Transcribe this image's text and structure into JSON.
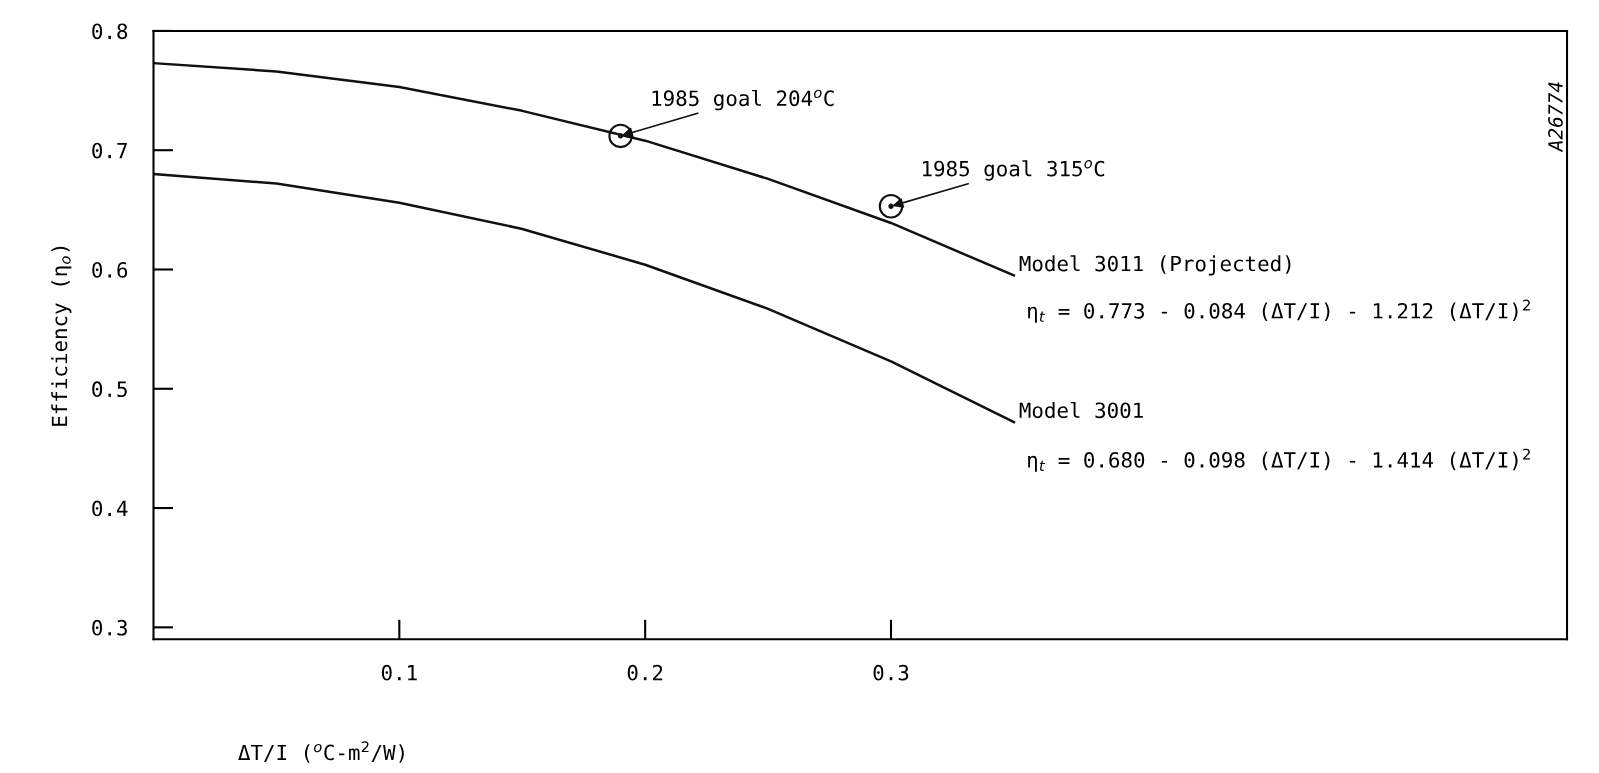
{
  "chart_data": {
    "type": "line",
    "xlabel": "ΔT/I ($^{o}$C-m$^{2}$/W)",
    "ylabel": "Efficiency (η$_{o}$)",
    "xlim": [
      0,
      0.575
    ],
    "xticks": [
      0.1,
      0.2,
      0.3
    ],
    "ylim": [
      0.29,
      0.8
    ],
    "yticks": [
      0.3,
      0.4,
      0.5,
      0.6,
      0.7,
      0.8
    ],
    "grid": false,
    "legend": false,
    "marker": "none",
    "line_style": "solid",
    "series": [
      {
        "name": "Model 3011 (Projected)",
        "color": "#111111",
        "x": [
          0,
          0.05,
          0.1,
          0.15,
          0.2,
          0.25,
          0.3,
          0.35
        ],
        "values": [
          0.773,
          0.766,
          0.753,
          0.733,
          0.708,
          0.676,
          0.639,
          0.595
        ]
      },
      {
        "name": "Model 3001",
        "color": "#111111",
        "x": [
          0,
          0.05,
          0.1,
          0.15,
          0.2,
          0.25,
          0.3,
          0.35
        ],
        "values": [
          0.68,
          0.672,
          0.656,
          0.634,
          0.604,
          0.567,
          0.523,
          0.472
        ]
      },
      {
        "type": "scatter",
        "marker": "circle",
        "color": "#111111",
        "x": [
          0.19,
          0.3
        ],
        "values": [
          0.712,
          0.653
        ]
      }
    ],
    "annotations": [
      {
        "text": "1985 goal 204$^{o}$C",
        "x": 0.19,
        "y": 0.712
      },
      {
        "text": "1985 goal 315$^{o}$C",
        "x": 0.3,
        "y": 0.653
      },
      "η$_{t}$ = 0.773 - 0.084 (ΔT/I) - 1.212 (ΔT/I)$^{2}$",
      "η$_{t}$ = 0.680 - 0.098 (ΔT/I) - 1.414 (ΔT/I)$^{2}$",
      "A26774"
    ]
  }
}
